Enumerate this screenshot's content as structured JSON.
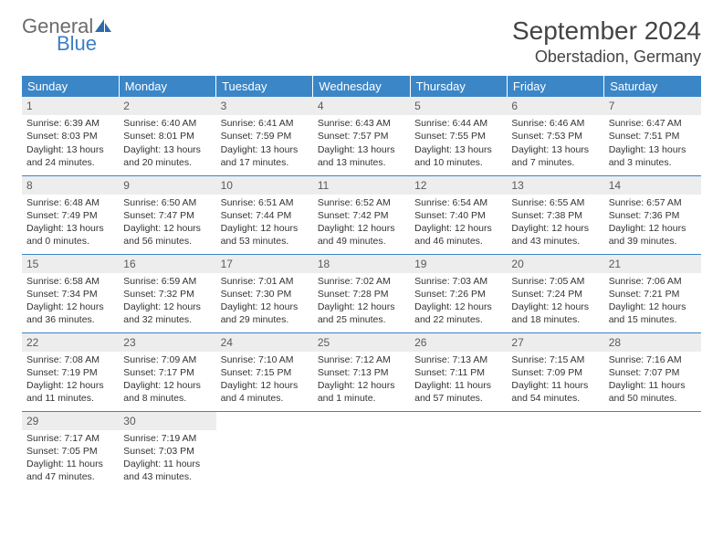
{
  "brand": {
    "general": "General",
    "blue": "Blue"
  },
  "header": {
    "title": "September 2024",
    "location": "Oberstadion, Germany",
    "title_fontsize": 28,
    "location_fontsize": 18
  },
  "colors": {
    "header_blue": "#3b86c7",
    "row_divider": "#3b86c7",
    "daynum_bg": "#ededed",
    "text": "#333333"
  },
  "dow": [
    "Sunday",
    "Monday",
    "Tuesday",
    "Wednesday",
    "Thursday",
    "Friday",
    "Saturday"
  ],
  "weeks": [
    [
      {
        "n": "1",
        "sr": "Sunrise: 6:39 AM",
        "ss": "Sunset: 8:03 PM",
        "d1": "Daylight: 13 hours",
        "d2": "and 24 minutes."
      },
      {
        "n": "2",
        "sr": "Sunrise: 6:40 AM",
        "ss": "Sunset: 8:01 PM",
        "d1": "Daylight: 13 hours",
        "d2": "and 20 minutes."
      },
      {
        "n": "3",
        "sr": "Sunrise: 6:41 AM",
        "ss": "Sunset: 7:59 PM",
        "d1": "Daylight: 13 hours",
        "d2": "and 17 minutes."
      },
      {
        "n": "4",
        "sr": "Sunrise: 6:43 AM",
        "ss": "Sunset: 7:57 PM",
        "d1": "Daylight: 13 hours",
        "d2": "and 13 minutes."
      },
      {
        "n": "5",
        "sr": "Sunrise: 6:44 AM",
        "ss": "Sunset: 7:55 PM",
        "d1": "Daylight: 13 hours",
        "d2": "and 10 minutes."
      },
      {
        "n": "6",
        "sr": "Sunrise: 6:46 AM",
        "ss": "Sunset: 7:53 PM",
        "d1": "Daylight: 13 hours",
        "d2": "and 7 minutes."
      },
      {
        "n": "7",
        "sr": "Sunrise: 6:47 AM",
        "ss": "Sunset: 7:51 PM",
        "d1": "Daylight: 13 hours",
        "d2": "and 3 minutes."
      }
    ],
    [
      {
        "n": "8",
        "sr": "Sunrise: 6:48 AM",
        "ss": "Sunset: 7:49 PM",
        "d1": "Daylight: 13 hours",
        "d2": "and 0 minutes."
      },
      {
        "n": "9",
        "sr": "Sunrise: 6:50 AM",
        "ss": "Sunset: 7:47 PM",
        "d1": "Daylight: 12 hours",
        "d2": "and 56 minutes."
      },
      {
        "n": "10",
        "sr": "Sunrise: 6:51 AM",
        "ss": "Sunset: 7:44 PM",
        "d1": "Daylight: 12 hours",
        "d2": "and 53 minutes."
      },
      {
        "n": "11",
        "sr": "Sunrise: 6:52 AM",
        "ss": "Sunset: 7:42 PM",
        "d1": "Daylight: 12 hours",
        "d2": "and 49 minutes."
      },
      {
        "n": "12",
        "sr": "Sunrise: 6:54 AM",
        "ss": "Sunset: 7:40 PM",
        "d1": "Daylight: 12 hours",
        "d2": "and 46 minutes."
      },
      {
        "n": "13",
        "sr": "Sunrise: 6:55 AM",
        "ss": "Sunset: 7:38 PM",
        "d1": "Daylight: 12 hours",
        "d2": "and 43 minutes."
      },
      {
        "n": "14",
        "sr": "Sunrise: 6:57 AM",
        "ss": "Sunset: 7:36 PM",
        "d1": "Daylight: 12 hours",
        "d2": "and 39 minutes."
      }
    ],
    [
      {
        "n": "15",
        "sr": "Sunrise: 6:58 AM",
        "ss": "Sunset: 7:34 PM",
        "d1": "Daylight: 12 hours",
        "d2": "and 36 minutes."
      },
      {
        "n": "16",
        "sr": "Sunrise: 6:59 AM",
        "ss": "Sunset: 7:32 PM",
        "d1": "Daylight: 12 hours",
        "d2": "and 32 minutes."
      },
      {
        "n": "17",
        "sr": "Sunrise: 7:01 AM",
        "ss": "Sunset: 7:30 PM",
        "d1": "Daylight: 12 hours",
        "d2": "and 29 minutes."
      },
      {
        "n": "18",
        "sr": "Sunrise: 7:02 AM",
        "ss": "Sunset: 7:28 PM",
        "d1": "Daylight: 12 hours",
        "d2": "and 25 minutes."
      },
      {
        "n": "19",
        "sr": "Sunrise: 7:03 AM",
        "ss": "Sunset: 7:26 PM",
        "d1": "Daylight: 12 hours",
        "d2": "and 22 minutes."
      },
      {
        "n": "20",
        "sr": "Sunrise: 7:05 AM",
        "ss": "Sunset: 7:24 PM",
        "d1": "Daylight: 12 hours",
        "d2": "and 18 minutes."
      },
      {
        "n": "21",
        "sr": "Sunrise: 7:06 AM",
        "ss": "Sunset: 7:21 PM",
        "d1": "Daylight: 12 hours",
        "d2": "and 15 minutes."
      }
    ],
    [
      {
        "n": "22",
        "sr": "Sunrise: 7:08 AM",
        "ss": "Sunset: 7:19 PM",
        "d1": "Daylight: 12 hours",
        "d2": "and 11 minutes."
      },
      {
        "n": "23",
        "sr": "Sunrise: 7:09 AM",
        "ss": "Sunset: 7:17 PM",
        "d1": "Daylight: 12 hours",
        "d2": "and 8 minutes."
      },
      {
        "n": "24",
        "sr": "Sunrise: 7:10 AM",
        "ss": "Sunset: 7:15 PM",
        "d1": "Daylight: 12 hours",
        "d2": "and 4 minutes."
      },
      {
        "n": "25",
        "sr": "Sunrise: 7:12 AM",
        "ss": "Sunset: 7:13 PM",
        "d1": "Daylight: 12 hours",
        "d2": "and 1 minute."
      },
      {
        "n": "26",
        "sr": "Sunrise: 7:13 AM",
        "ss": "Sunset: 7:11 PM",
        "d1": "Daylight: 11 hours",
        "d2": "and 57 minutes."
      },
      {
        "n": "27",
        "sr": "Sunrise: 7:15 AM",
        "ss": "Sunset: 7:09 PM",
        "d1": "Daylight: 11 hours",
        "d2": "and 54 minutes."
      },
      {
        "n": "28",
        "sr": "Sunrise: 7:16 AM",
        "ss": "Sunset: 7:07 PM",
        "d1": "Daylight: 11 hours",
        "d2": "and 50 minutes."
      }
    ],
    [
      {
        "n": "29",
        "sr": "Sunrise: 7:17 AM",
        "ss": "Sunset: 7:05 PM",
        "d1": "Daylight: 11 hours",
        "d2": "and 47 minutes."
      },
      {
        "n": "30",
        "sr": "Sunrise: 7:19 AM",
        "ss": "Sunset: 7:03 PM",
        "d1": "Daylight: 11 hours",
        "d2": "and 43 minutes."
      },
      null,
      null,
      null,
      null,
      null
    ]
  ]
}
